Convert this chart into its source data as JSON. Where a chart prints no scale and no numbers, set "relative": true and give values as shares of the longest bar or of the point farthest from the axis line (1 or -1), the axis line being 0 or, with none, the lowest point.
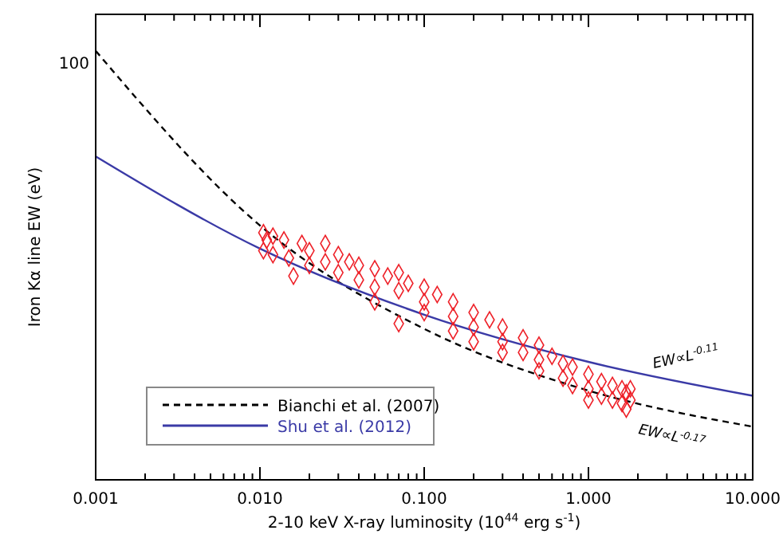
{
  "chart_data": {
    "type": "scatter",
    "xlabel": "2-10 keV X-ray luminosity (10$^{44}$ erg s$^{-1}$)",
    "ylabel": "Iron Kα line EW (eV)",
    "log": "x",
    "relative": true,
    "legend": "bottom left",
    "xlim": [
      0.001,
      10
    ],
    "xticks": [
      {
        "value": 0.001,
        "label": "0.001"
      },
      {
        "value": 0.002,
        "label": null
      },
      {
        "value": 0.003,
        "label": null
      },
      {
        "value": 0.004,
        "label": null
      },
      {
        "value": 0.005,
        "label": null
      },
      {
        "value": 0.006,
        "label": null
      },
      {
        "value": 0.007,
        "label": null
      },
      {
        "value": 0.008,
        "label": null
      },
      {
        "value": 0.009,
        "label": null
      },
      {
        "value": 0.01,
        "label": "0.010"
      },
      {
        "value": 0.02,
        "label": null
      },
      {
        "value": 0.03,
        "label": null
      },
      {
        "value": 0.04,
        "label": null
      },
      {
        "value": 0.05,
        "label": null
      },
      {
        "value": 0.06,
        "label": null
      },
      {
        "value": 0.07,
        "label": null
      },
      {
        "value": 0.08,
        "label": null
      },
      {
        "value": 0.09,
        "label": null
      },
      {
        "value": 0.1,
        "label": "0.100"
      },
      {
        "value": 0.2,
        "label": null
      },
      {
        "value": 0.3,
        "label": null
      },
      {
        "value": 0.4,
        "label": null
      },
      {
        "value": 0.5,
        "label": null
      },
      {
        "value": 0.6,
        "label": null
      },
      {
        "value": 0.7,
        "label": null
      },
      {
        "value": 0.8,
        "label": null
      },
      {
        "value": 0.9,
        "label": null
      },
      {
        "value": 1,
        "label": "1.000"
      },
      {
        "value": 2,
        "label": null
      },
      {
        "value": 3,
        "label": null
      },
      {
        "value": 4,
        "label": null
      },
      {
        "value": 5,
        "label": null
      },
      {
        "value": 6,
        "label": null
      },
      {
        "value": 7,
        "label": null
      },
      {
        "value": 8,
        "label": null
      },
      {
        "value": 9,
        "label": null
      },
      {
        "value": 10,
        "label": "10.000"
      }
    ],
    "series": [
      {
        "type": "line",
        "name": "Bianchi et al. (2007)",
        "color": "#000000",
        "line_style": "dashed",
        "marker": "none",
        "x": [
          0.001,
          0.01,
          0.1,
          1,
          10
        ],
        "values": [
          1,
          0.593,
          0.352,
          0.208,
          0.124
        ]
      },
      {
        "type": "line",
        "name": "Shu et al. (2012)",
        "color": "#3a3aa6",
        "line_style": "solid",
        "marker": "none",
        "x": [
          0.001,
          0.01,
          0.1,
          1,
          10
        ],
        "values": [
          0.754,
          0.539,
          0.385,
          0.275,
          0.196
        ]
      },
      {
        "color": "#ee2028",
        "marker": "diamond",
        "x": [
          0.0105,
          0.0105,
          0.011,
          0.012,
          0.012,
          0.014,
          0.015,
          0.016,
          0.018,
          0.02,
          0.02,
          0.025,
          0.025,
          0.03,
          0.03,
          0.035,
          0.04,
          0.04,
          0.05,
          0.05,
          0.05,
          0.06,
          0.07,
          0.07,
          0.07,
          0.08,
          0.1,
          0.1,
          0.1,
          0.12,
          0.15,
          0.15,
          0.15,
          0.2,
          0.2,
          0.2,
          0.25,
          0.3,
          0.3,
          0.3,
          0.4,
          0.4,
          0.5,
          0.5,
          0.5,
          0.6,
          0.7,
          0.7,
          0.8,
          0.8,
          1.0,
          1.0,
          1.0,
          1.2,
          1.2,
          1.4,
          1.4,
          1.6,
          1.6,
          1.7,
          1.7,
          1.8,
          1.8
        ],
        "values": [
          0.576,
          0.534,
          0.559,
          0.568,
          0.525,
          0.559,
          0.517,
          0.475,
          0.551,
          0.534,
          0.5,
          0.551,
          0.508,
          0.525,
          0.483,
          0.508,
          0.5,
          0.466,
          0.492,
          0.449,
          0.415,
          0.475,
          0.483,
          0.441,
          0.364,
          0.458,
          0.449,
          0.415,
          0.39,
          0.432,
          0.415,
          0.381,
          0.347,
          0.39,
          0.356,
          0.322,
          0.373,
          0.356,
          0.322,
          0.297,
          0.331,
          0.297,
          0.314,
          0.28,
          0.254,
          0.288,
          0.271,
          0.237,
          0.263,
          0.22,
          0.246,
          0.212,
          0.186,
          0.229,
          0.195,
          0.22,
          0.186,
          0.212,
          0.178,
          0.203,
          0.165,
          0.212,
          0.186
        ]
      }
    ],
    "annotations": [
      "100",
      {
        "text": "EW∝L$^{-0.11}$",
        "x": 2.5,
        "y": 0.26
      },
      "EW∝L$^{-0.17}$"
    ]
  }
}
